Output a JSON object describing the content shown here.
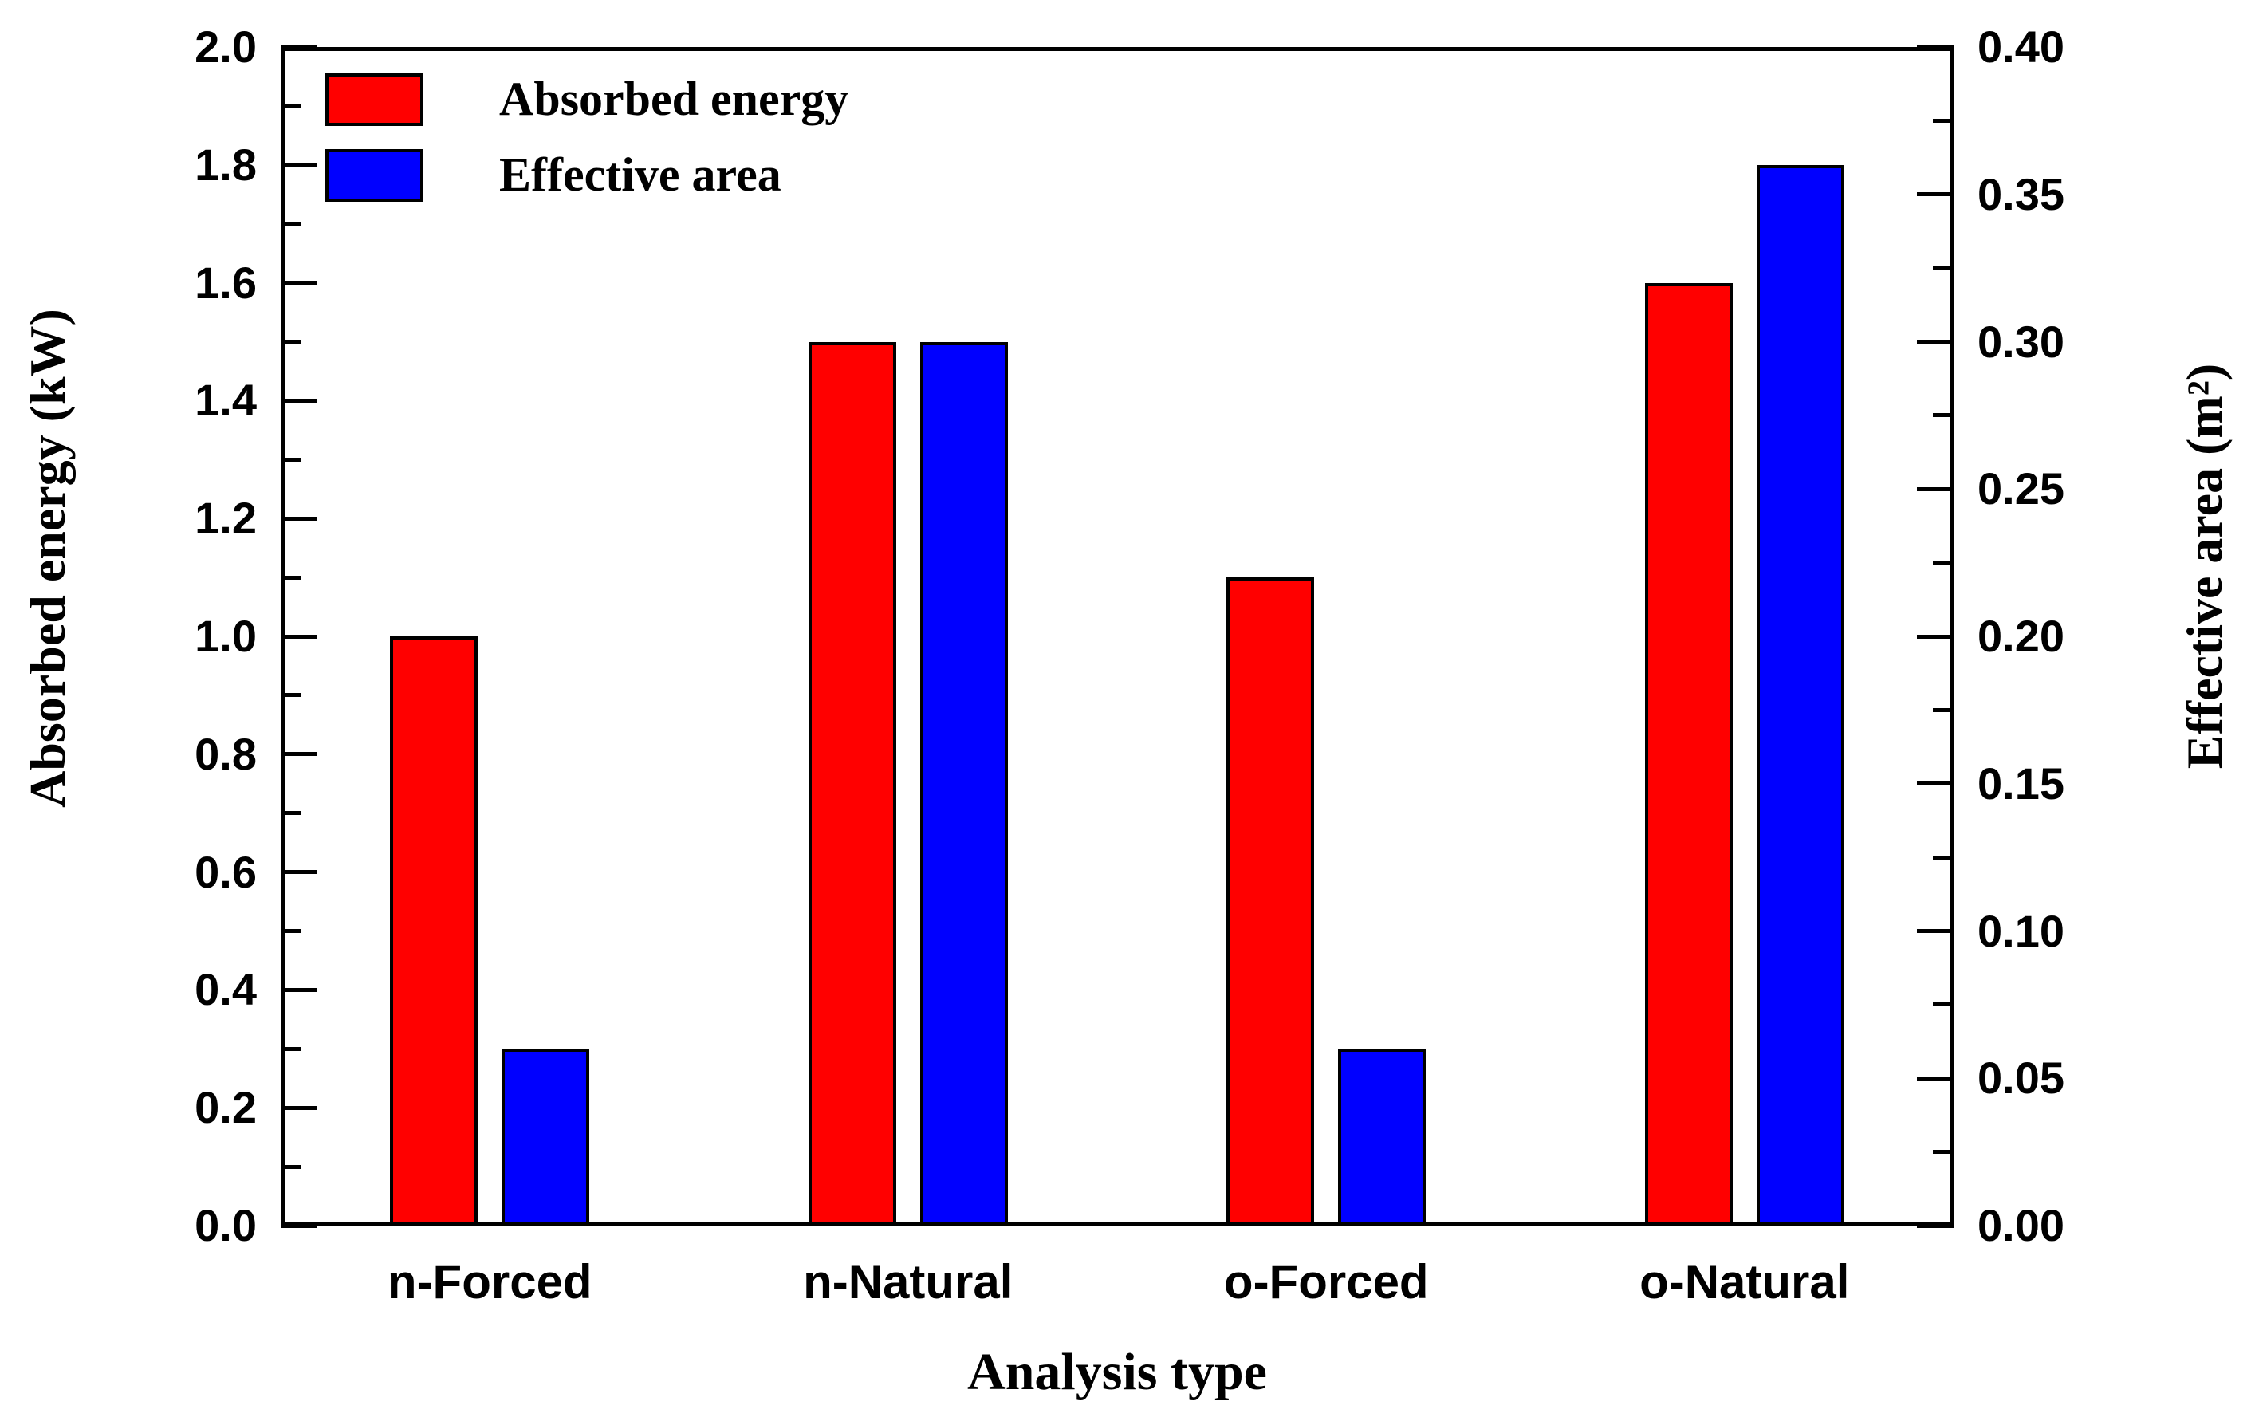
{
  "chart_data": {
    "type": "bar",
    "title": "",
    "categories": [
      "n-Forced",
      "n-Natural",
      "o-Forced",
      "o-Natural"
    ],
    "xlabel": "Analysis type",
    "series": [
      {
        "name": "Absorbed energy",
        "axis": "left",
        "color": "#ff0000",
        "unit": "kW",
        "values": [
          1.0,
          1.5,
          1.1,
          1.6
        ]
      },
      {
        "name": "Effective area",
        "axis": "right",
        "color": "#0000ff",
        "unit": "m²",
        "values": [
          0.06,
          0.3,
          0.06,
          0.36
        ]
      }
    ],
    "left_axis": {
      "label": "Absorbed energy (kW)",
      "min": 0,
      "max": 2.0,
      "major_step": 0.2,
      "minor_step": 0.1,
      "tick_decimals": 1
    },
    "right_axis": {
      "label": "Effective area (m²)",
      "min": 0,
      "max": 0.4,
      "major_step": 0.05,
      "minor_step": 0.025,
      "tick_decimals": 2
    },
    "legend_position": "top-left",
    "grid": false,
    "frame_color": "#000000",
    "background_color": "#ffffff"
  }
}
